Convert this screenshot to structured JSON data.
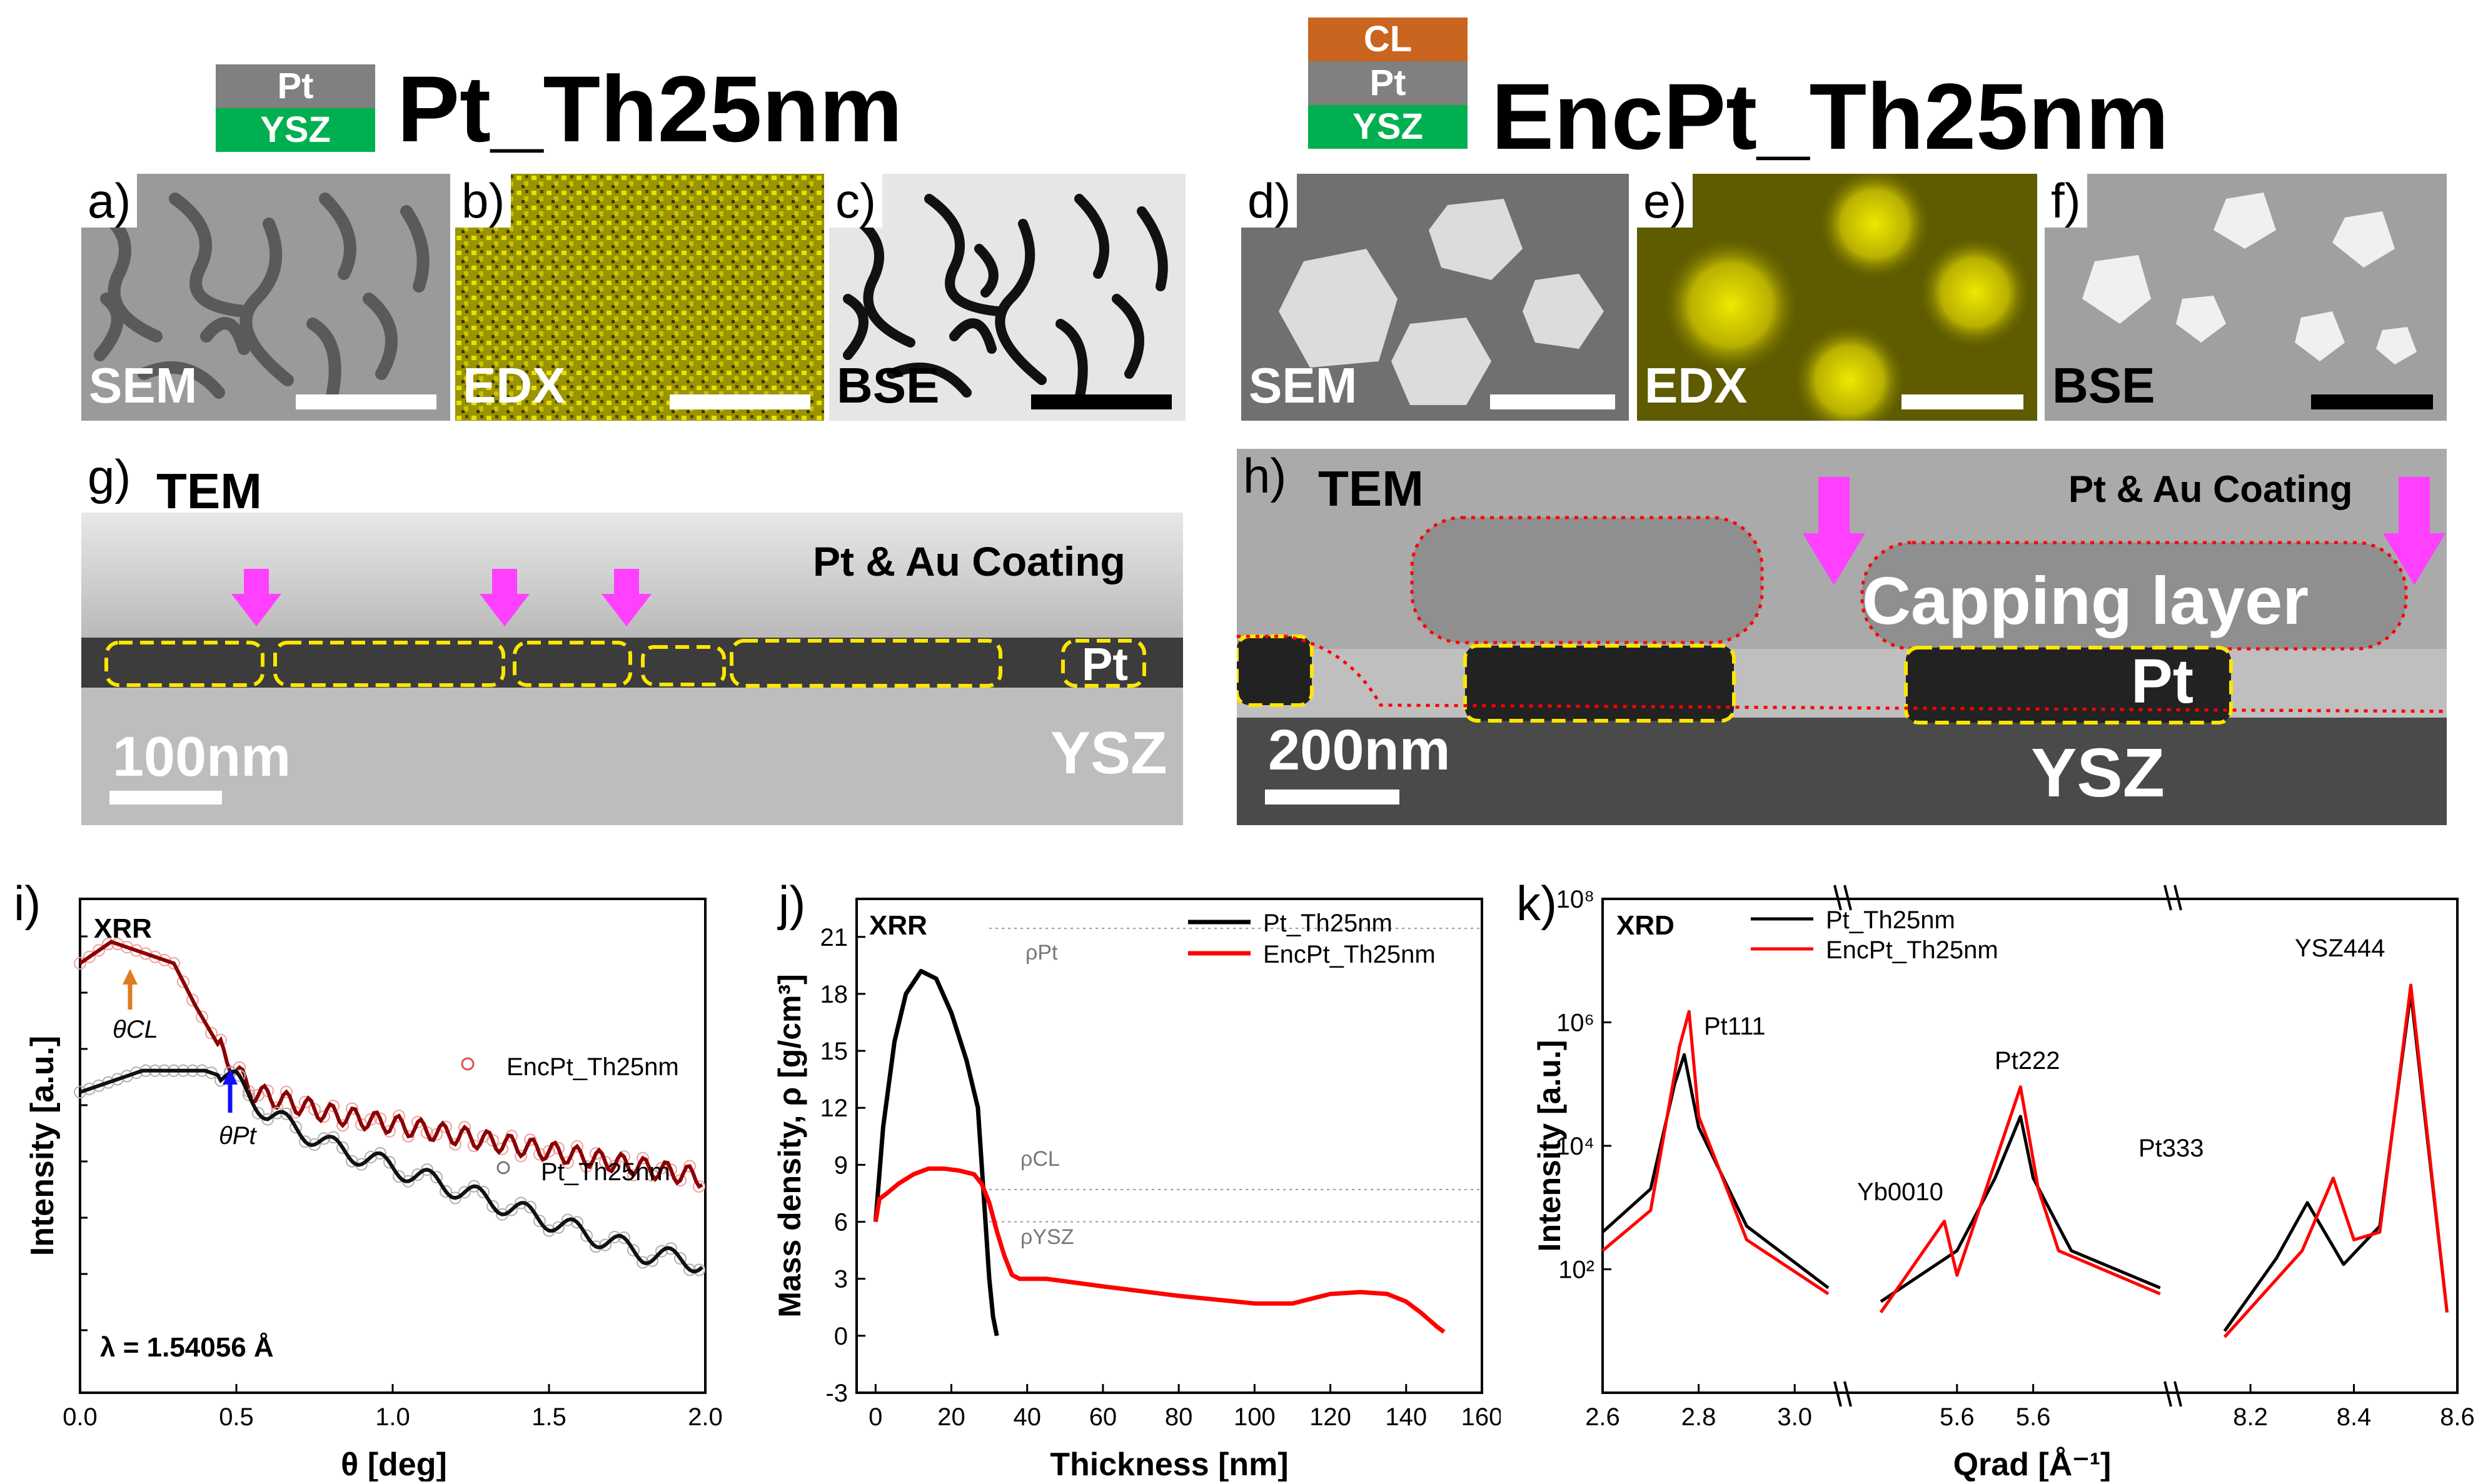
{
  "header": {
    "left_title": "Pt_Th25nm",
    "right_title": "EncPt_Th25nm",
    "left_stack": [
      "Pt",
      "YSZ"
    ],
    "right_stack": [
      "CL",
      "Pt",
      "YSZ"
    ],
    "colors": {
      "CL": "#c9651f",
      "Pt": "#808080",
      "YSZ": "#00b050"
    }
  },
  "panels": {
    "a": {
      "label": "a)",
      "tag": "SEM"
    },
    "b": {
      "label": "b)",
      "tag": "EDX"
    },
    "c": {
      "label": "c)",
      "tag": "BSE"
    },
    "d": {
      "label": "d)",
      "tag": "SEM"
    },
    "e": {
      "label": "e)",
      "tag": "EDX"
    },
    "f": {
      "label": "f)",
      "tag": "BSE"
    },
    "g": {
      "label": "g)",
      "title": "TEM",
      "coating": "Pt & Au Coating",
      "pt": "Pt",
      "ysz": "YSZ",
      "scale": "100nm"
    },
    "h": {
      "label": "h)",
      "title": "TEM",
      "coating": "Pt & Au Coating",
      "capping": "Capping layer",
      "pt": "Pt",
      "ysz": "YSZ",
      "scale": "200nm"
    }
  },
  "chart_data": [
    {
      "id": "i",
      "panel_label": "i)",
      "type": "line",
      "title": "XRR",
      "xlabel": "θ [deg]",
      "ylabel": "Intensity [a.u.]",
      "xlim": [
        0.0,
        2.0
      ],
      "xticks": [
        "0.0",
        "0.5",
        "1.0",
        "1.5",
        "2.0"
      ],
      "annotations": [
        "θCL",
        "θPt",
        "λ = 1.54056 Å"
      ],
      "series": [
        {
          "name": "EncPt_Th25nm",
          "x": [
            0.0,
            0.1,
            0.2,
            0.3,
            0.37,
            0.45,
            0.55,
            0.8,
            1.2,
            1.6,
            2.0
          ],
          "y": [
            8.6,
            8.8,
            8.7,
            8.6,
            8.2,
            7.8,
            7.4,
            7.2,
            7.0,
            6.8,
            6.6
          ]
        },
        {
          "name": "Pt_Th25nm",
          "x": [
            0.0,
            0.2,
            0.4,
            0.5,
            0.6,
            0.8,
            1.0,
            1.2,
            1.4,
            1.6,
            1.8,
            2.0
          ],
          "y": [
            7.4,
            7.6,
            7.6,
            7.5,
            7.2,
            6.9,
            6.7,
            6.5,
            6.3,
            6.1,
            5.9,
            5.8
          ]
        }
      ]
    },
    {
      "id": "j",
      "panel_label": "j)",
      "type": "line",
      "title": "XRR",
      "xlabel": "Thickness [nm]",
      "ylabel": "Mass density, ρ [g/cm³]",
      "xlim": [
        -5,
        160
      ],
      "ylim": [
        -3,
        23
      ],
      "xticks": [
        "0",
        "20",
        "40",
        "60",
        "80",
        "100",
        "120",
        "140",
        "160"
      ],
      "yticks": [
        "-3",
        "0",
        "3",
        "6",
        "9",
        "12",
        "15",
        "18",
        "21"
      ],
      "annotations": [
        "ρPt",
        "ρCL",
        "ρYSZ"
      ],
      "reference_lines": [
        21.45,
        7.7,
        6.0
      ],
      "series": [
        {
          "name": "Pt_Th25nm",
          "x": [
            0,
            2,
            5,
            8,
            12,
            16,
            20,
            24,
            27,
            28,
            29,
            30,
            31,
            32
          ],
          "y": [
            6.0,
            11.0,
            15.5,
            18.0,
            19.2,
            18.8,
            17.0,
            14.5,
            12.0,
            9.0,
            6.0,
            3.0,
            1.0,
            0.0
          ]
        },
        {
          "name": "EncPt_Th25nm",
          "x": [
            0,
            1,
            3,
            6,
            10,
            14,
            18,
            22,
            26,
            28,
            30,
            32,
            34,
            36,
            38,
            45,
            60,
            80,
            100,
            110,
            120,
            128,
            135,
            140,
            144,
            148,
            150
          ],
          "y": [
            6.0,
            7.2,
            7.5,
            8.0,
            8.5,
            8.8,
            8.8,
            8.7,
            8.5,
            8.0,
            7.0,
            5.5,
            4.2,
            3.2,
            3.0,
            3.0,
            2.6,
            2.1,
            1.7,
            1.7,
            2.2,
            2.3,
            2.2,
            1.8,
            1.2,
            0.5,
            0.2
          ]
        }
      ]
    },
    {
      "id": "k",
      "panel_label": "k)",
      "type": "line",
      "title": "XRD",
      "xlabel": "Qrad [Å⁻¹]",
      "ylabel": "Intensity [a.u.]",
      "yscale": "log",
      "ylim": [
        1,
        100000000
      ],
      "yticks": [
        "10²",
        "10⁴",
        "10⁶",
        "10⁸"
      ],
      "xticks": [
        "2.6",
        "2.8",
        "3.0",
        "5.6",
        "5.6",
        "8.2",
        "8.4",
        "8.6"
      ],
      "peaks": [
        "Pt111",
        "Yb0010",
        "Pt222",
        "Pt333",
        "YSZ444"
      ],
      "series": [
        {
          "name": "Pt_Th25nm",
          "x": [
            2.6,
            2.7,
            2.75,
            2.77,
            2.8,
            2.9,
            3.07,
            5.0,
            5.3,
            5.45,
            5.55,
            5.6,
            5.75,
            6.1,
            8.15,
            8.25,
            8.31,
            8.38,
            8.45,
            8.51,
            8.58
          ],
          "y": [
            400,
            2000,
            100000,
            300000,
            20000,
            500,
            50,
            30,
            200,
            3000,
            30000,
            3000,
            200,
            50,
            10,
            150,
            1200,
            120,
            500,
            3000000,
            20
          ]
        },
        {
          "name": "EncPt_Th25nm",
          "x": [
            2.6,
            2.7,
            2.76,
            2.78,
            2.8,
            2.9,
            3.07,
            5.0,
            5.25,
            5.3,
            5.55,
            5.62,
            5.7,
            6.1,
            8.15,
            8.3,
            8.36,
            8.4,
            8.45,
            8.51,
            8.58
          ],
          "y": [
            200,
            900,
            400000,
            1500000,
            30000,
            300,
            40,
            20,
            600,
            80,
            90000,
            2000,
            200,
            40,
            8,
            200,
            3000,
            300,
            400,
            4000000,
            20
          ]
        }
      ]
    }
  ]
}
